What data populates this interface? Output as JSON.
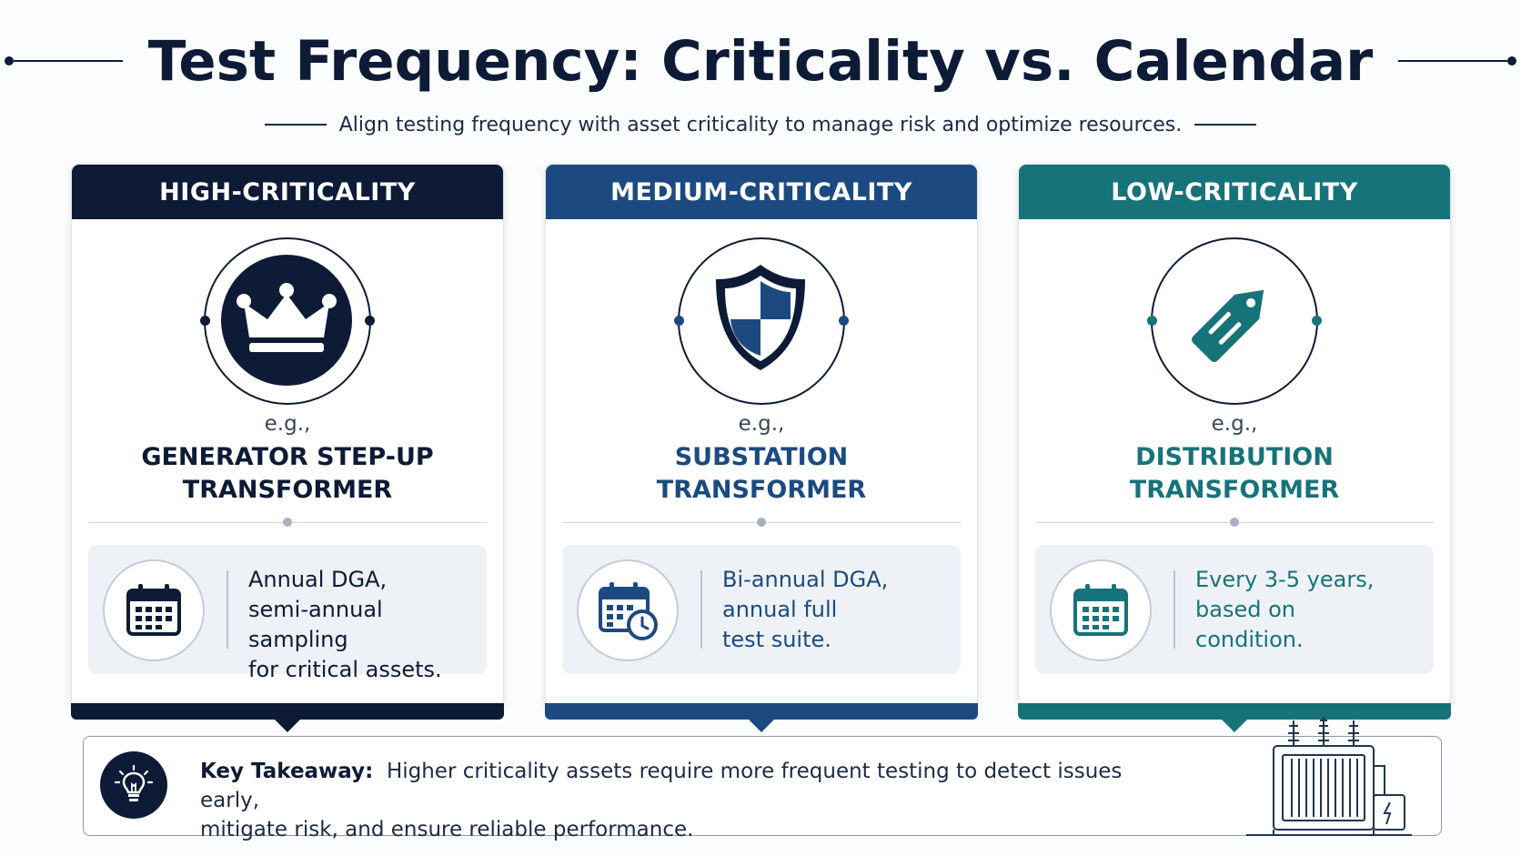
{
  "title": "Test Frequency: Criticality vs. Calendar",
  "subtitle": "Align testing frequency with asset criticality to manage risk and optimize resources.",
  "colors": {
    "high": "#0d1b36",
    "medium": "#1c4a80",
    "low": "#17737a",
    "panel_bg": "#eef2f7"
  },
  "cards": [
    {
      "header": "HIGH-CRITICALITY",
      "icon": "crown-icon",
      "eg": "e.g.,",
      "asset_line1": "GENERATOR STEP-UP",
      "asset_line2": "TRANSFORMER",
      "calendar_icon": "calendar-icon",
      "freq_line1": "Annual DGA,",
      "freq_line2": "semi-annual sampling",
      "freq_line3": "for critical assets."
    },
    {
      "header": "MEDIUM-CRITICALITY",
      "icon": "shield-icon",
      "eg": "e.g.,",
      "asset_line1": "SUBSTATION",
      "asset_line2": "TRANSFORMER",
      "calendar_icon": "calendar-clock-icon",
      "freq_line1": "Bi-annual DGA,",
      "freq_line2": "annual full",
      "freq_line3": "test suite."
    },
    {
      "header": "LOW-CRITICALITY",
      "icon": "tag-icon",
      "eg": "e.g.,",
      "asset_line1": "DISTRIBUTION",
      "asset_line2": "TRANSFORMER",
      "calendar_icon": "calendar-icon",
      "freq_line1": "Every 3-5 years,",
      "freq_line2": "based on",
      "freq_line3": "condition."
    }
  ],
  "takeaway": {
    "icon": "lightbulb-icon",
    "label": "Key Takeaway:",
    "line1": "Higher criticality assets require more frequent testing to detect issues early,",
    "line2": "mitigate risk, and ensure reliable performance.",
    "illustration": "transformer-icon"
  }
}
